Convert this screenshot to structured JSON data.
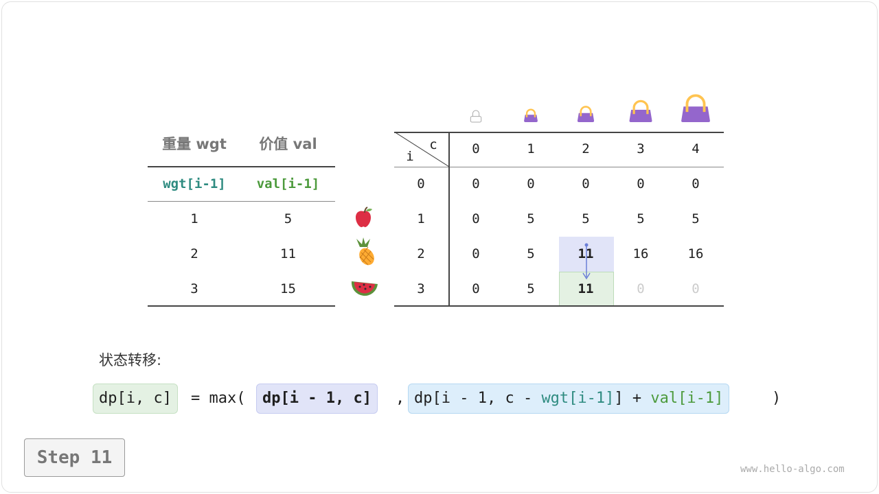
{
  "items_table": {
    "headers": [
      "重量 wgt",
      "价值 val"
    ],
    "subheaders": [
      "wgt[i-1]",
      "val[i-1]"
    ],
    "rows": [
      {
        "wgt": "1",
        "val": "5",
        "icon": "apple-icon"
      },
      {
        "wgt": "2",
        "val": "11",
        "icon": "pineapple-icon"
      },
      {
        "wgt": "3",
        "val": "15",
        "icon": "watermelon-icon"
      }
    ]
  },
  "dp_table": {
    "corner_col": "c",
    "corner_row": "i",
    "col_headers": [
      "0",
      "1",
      "2",
      "3",
      "4"
    ],
    "row_headers": [
      "0",
      "1",
      "2",
      "3"
    ],
    "rows": [
      [
        "0",
        "0",
        "0",
        "0",
        "0"
      ],
      [
        "0",
        "5",
        "5",
        "5",
        "5"
      ],
      [
        "0",
        "5",
        "11",
        "16",
        "16"
      ],
      [
        "0",
        "5",
        "11",
        "0",
        "0"
      ]
    ],
    "highlight_source": {
      "row": 2,
      "col": 2,
      "color": "#e1e4f8"
    },
    "highlight_target": {
      "row": 3,
      "col": 2,
      "color": "#e4f1e3"
    },
    "unfilled_color": "#cccccc",
    "bag_color": "#9466cc",
    "handle_color": "#ffc451"
  },
  "transition": {
    "label": "状态转移:",
    "lhs": "dp[i, c]",
    "eq": "= max(",
    "arg1": "dp[i - 1, c]",
    "comma": ",",
    "arg2_a": "dp[i - 1, c - ",
    "arg2_wgt": "wgt[i-1]",
    "arg2_b": "] + ",
    "arg2_val": "val[i-1]",
    "close": ")"
  },
  "step": "Step 11",
  "watermark": "www.hello-algo.com"
}
